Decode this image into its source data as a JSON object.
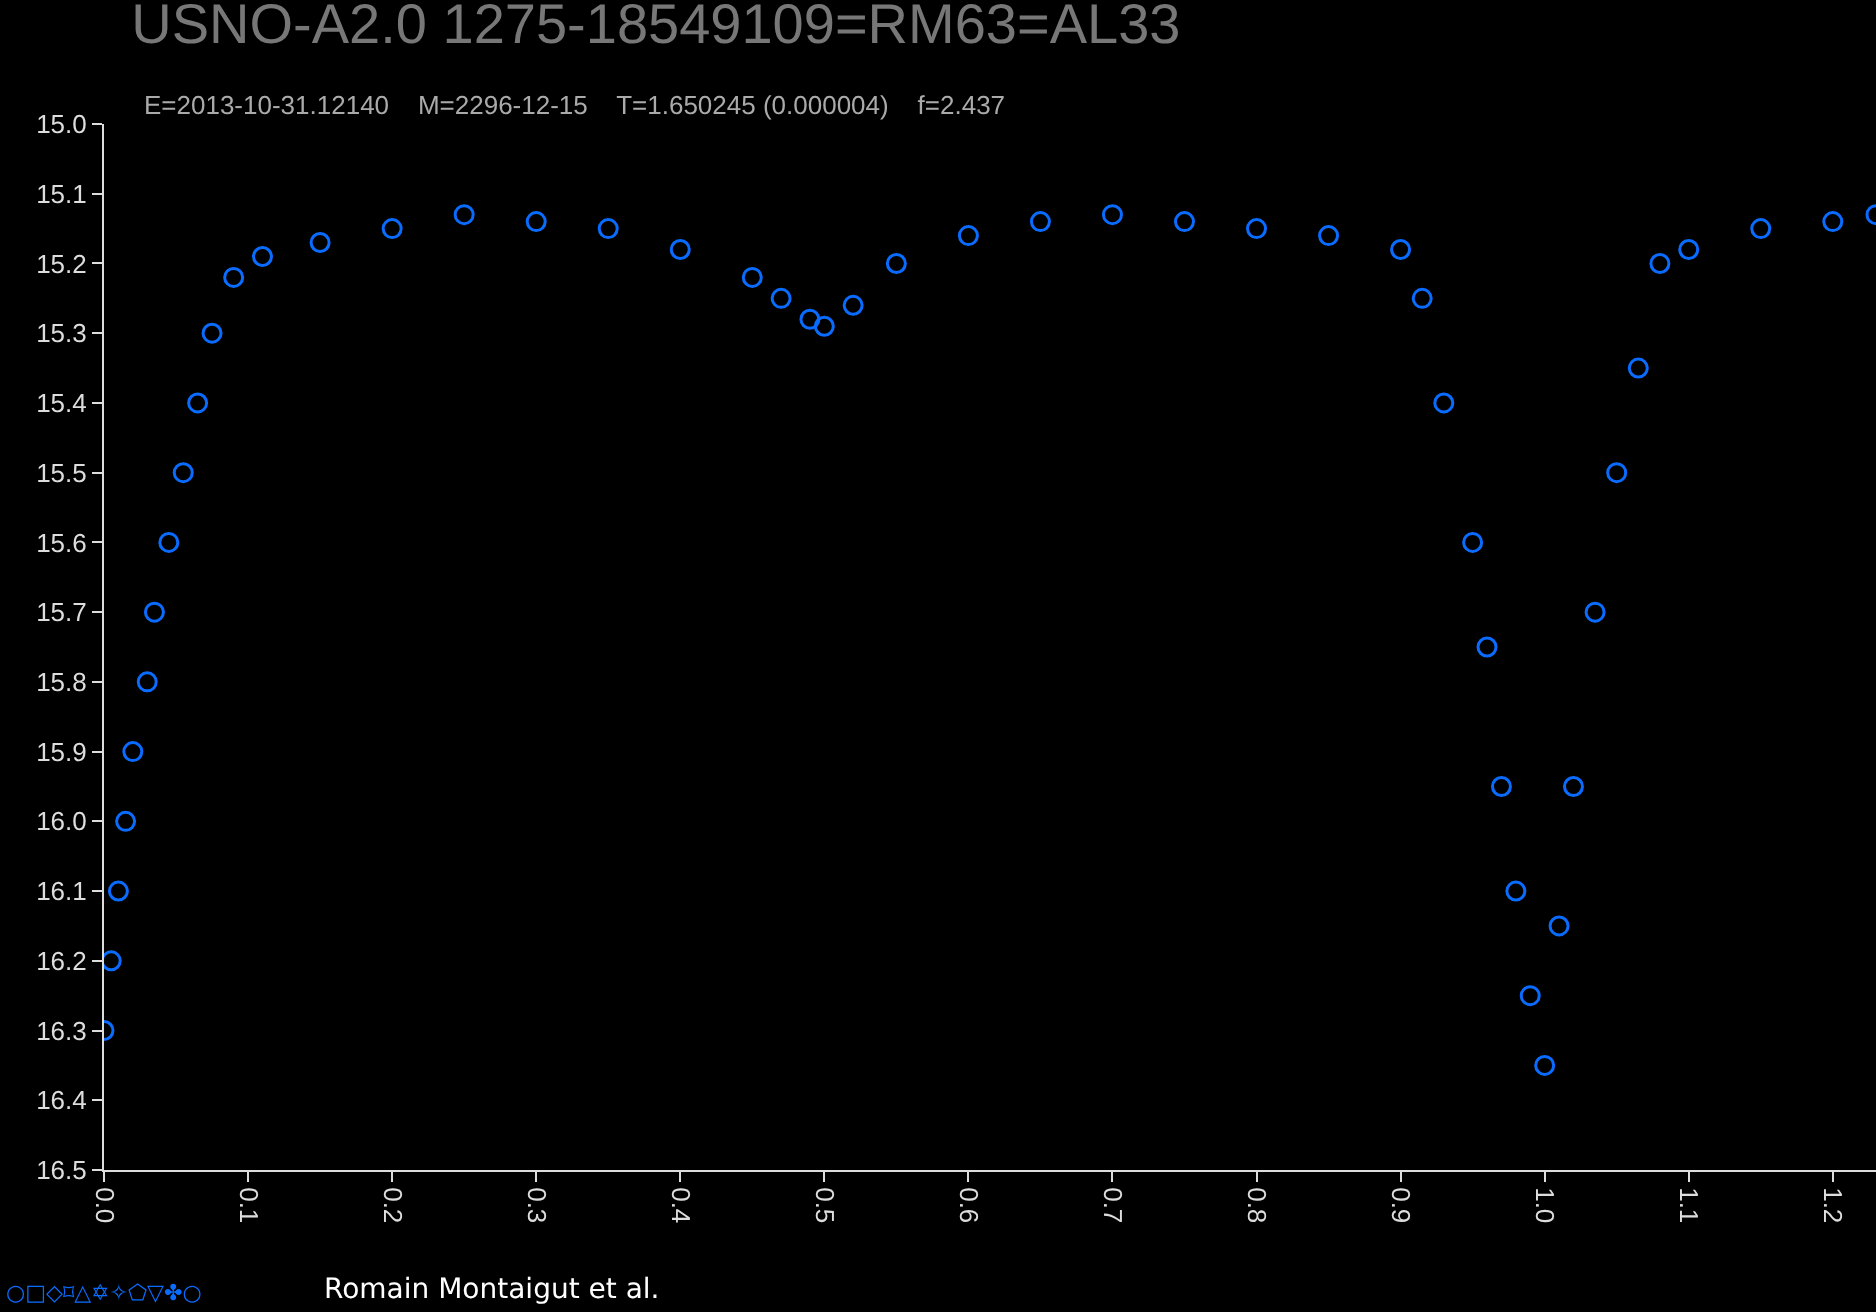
{
  "chart_data": {
    "type": "scatter",
    "title": "USNO-A2.0 1275-18549109=RM63=AL33",
    "subtitle": "E=2013-10-31.12140    M=2296-12-15    T=1.650245 (0.000004)    f=2.437",
    "x": [
      0.0,
      0.005,
      0.01,
      0.015,
      0.02,
      0.03,
      0.035,
      0.045,
      0.055,
      0.065,
      0.075,
      0.09,
      0.11,
      0.15,
      0.2,
      0.25,
      0.3,
      0.35,
      0.4,
      0.45,
      0.47,
      0.49,
      0.5,
      0.52,
      0.55,
      0.6,
      0.65,
      0.7,
      0.75,
      0.8,
      0.85,
      0.9,
      0.915,
      0.93,
      0.95,
      0.96,
      0.97,
      0.98,
      0.99,
      1.0,
      1.01,
      1.02,
      1.035,
      1.05,
      1.065,
      1.08,
      1.1,
      1.15,
      1.2,
      1.23
    ],
    "series": [
      {
        "color": "#0a6cff",
        "values": [
          16.3,
          16.2,
          16.1,
          16.0,
          15.9,
          15.8,
          15.7,
          15.6,
          15.5,
          15.4,
          15.3,
          15.22,
          15.19,
          15.17,
          15.15,
          15.13,
          15.14,
          15.15,
          15.18,
          15.22,
          15.25,
          15.28,
          15.29,
          15.26,
          15.2,
          15.16,
          15.14,
          15.13,
          15.14,
          15.15,
          15.16,
          15.18,
          15.25,
          15.4,
          15.6,
          15.75,
          15.95,
          16.1,
          16.25,
          16.35,
          16.15,
          15.95,
          15.7,
          15.5,
          15.35,
          15.2,
          15.18,
          15.15,
          15.14,
          15.13
        ]
      }
    ],
    "xlim": [
      0,
      1.23
    ],
    "ylim": [
      16.5,
      15.0
    ],
    "xticks": [
      {
        "value": 0,
        "label": "0.0"
      },
      0.1,
      0.2,
      0.3,
      0.4,
      0.5,
      0.6,
      0.7,
      0.8,
      0.9,
      {
        "value": 1,
        "label": "1.0"
      },
      1.1,
      1.2
    ],
    "yticks": [
      {
        "value": 15,
        "label": "15.0"
      },
      15.1,
      15.2,
      15.3,
      15.4,
      15.5,
      15.6,
      15.7,
      15.8,
      15.9,
      {
        "value": 16,
        "label": "16.0"
      },
      16.1,
      16.2,
      16.3,
      16.4,
      16.5
    ],
    "marker": "circle",
    "grid": false,
    "legend": false,
    "annotations": [
      "○□◇⌑△✡✧⬠▽✤○",
      "Romain Montaigut et al."
    ]
  }
}
